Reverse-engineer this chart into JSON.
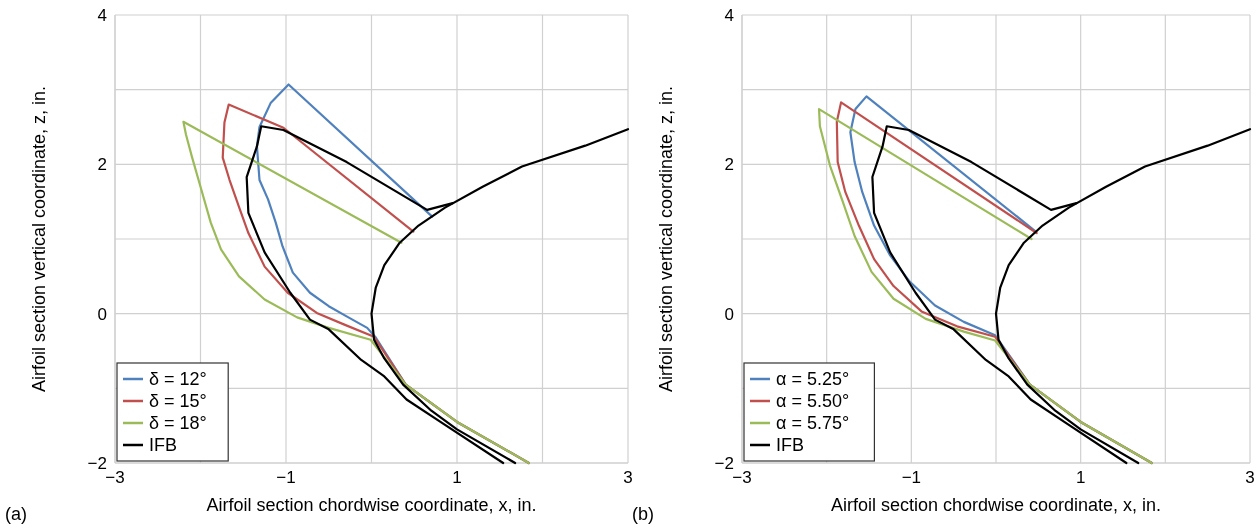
{
  "chart_data": [
    {
      "type": "line",
      "xlabel": "Airfoil section chordwise coordinate, x, in.",
      "ylabel": "Airfoil section vertical coordinate, z, in.",
      "annotations": [
        "(a)"
      ],
      "xlim": [
        -3,
        3
      ],
      "ylim": [
        -2,
        4
      ],
      "xticks": [
        -3,
        {
          "value": -2,
          "label": null
        },
        -1,
        {
          "value": 0,
          "label": null
        },
        1,
        {
          "value": 2,
          "label": null
        },
        3
      ],
      "yticks": [
        -2,
        {
          "value": -1,
          "label": null
        },
        0,
        {
          "value": 1,
          "label": null
        },
        2,
        {
          "value": 3,
          "label": null
        },
        4
      ],
      "grid": true,
      "legend": "bottom left",
      "series": [
        {
          "name": "δ = 12°",
          "color": "#4f81bd",
          "x": [
            1.84,
            1.0,
            0.4,
            0.05,
            -0.05,
            -0.27,
            -0.5,
            -0.72,
            -0.92,
            -1.04,
            -1.12,
            -1.21,
            -1.31,
            -1.34,
            -1.31,
            -1.18,
            -0.97,
            0.71
          ],
          "values": [
            -2.0,
            -1.45,
            -0.95,
            -0.32,
            -0.19,
            -0.05,
            0.1,
            0.28,
            0.55,
            0.9,
            1.22,
            1.53,
            1.79,
            2.24,
            2.5,
            2.82,
            3.07,
            1.3
          ]
        },
        {
          "name": "δ = 15°",
          "color": "#c0504d",
          "x": [
            1.84,
            1.0,
            0.4,
            0.03,
            -0.31,
            -0.64,
            -0.98,
            -1.25,
            -1.44,
            -1.55,
            -1.66,
            -1.74,
            -1.72,
            -1.67,
            -1.03,
            0.49
          ],
          "values": [
            -2.0,
            -1.45,
            -0.95,
            -0.31,
            -0.15,
            0.01,
            0.28,
            0.63,
            1.08,
            1.43,
            1.79,
            2.09,
            2.56,
            2.8,
            2.49,
            1.1
          ]
        },
        {
          "name": "δ = 18°",
          "color": "#9bbb59",
          "x": [
            1.84,
            1.0,
            0.4,
            -0.01,
            -0.5,
            -0.87,
            -1.25,
            -1.55,
            -1.76,
            -1.88,
            -2.0,
            -2.1,
            -2.17,
            -2.2,
            0.35
          ],
          "values": [
            -2.0,
            -1.45,
            -0.95,
            -0.35,
            -0.19,
            -0.05,
            0.19,
            0.5,
            0.86,
            1.22,
            1.7,
            2.1,
            2.4,
            2.57,
            0.95
          ]
        },
        {
          "color": "#000000",
          "x": [
            3,
            2.5,
            1.76,
            1.3,
            0.86,
            0.55,
            0.33,
            0.15,
            0.05,
            0,
            0.03,
            0.15,
            0.37,
            0.7,
            1.0,
            1.68
          ],
          "values": [
            2.47,
            2.25,
            1.97,
            1.7,
            1.42,
            1.18,
            0.95,
            0.65,
            0.35,
            0,
            -0.35,
            -0.6,
            -0.95,
            -1.3,
            -1.55,
            -2.0
          ]
        },
        {
          "name": "IFB",
          "color": "#000000",
          "x": [
            0.95,
            0.65,
            -0.29,
            -1.03,
            -1.29,
            -1.34,
            -1.46,
            -1.44,
            -1.25,
            -0.95,
            -0.72,
            -0.5,
            -0.12,
            0.15,
            0.41,
            0.82,
            1.54
          ],
          "values": [
            1.48,
            1.39,
            2.03,
            2.46,
            2.51,
            2.24,
            1.83,
            1.35,
            0.82,
            0.28,
            -0.08,
            -0.21,
            -0.62,
            -0.84,
            -1.15,
            -1.46,
            -2.0
          ]
        }
      ]
    },
    {
      "type": "line",
      "xlabel": "Airfoil section chordwise coordinate, x, in.",
      "ylabel": "Airfoil section vertical coordinate, z, in.",
      "annotations": [
        "(b)"
      ],
      "xlim": [
        -3,
        3
      ],
      "ylim": [
        -2,
        4
      ],
      "xticks": [
        -3,
        {
          "value": -2,
          "label": null
        },
        -1,
        {
          "value": 0,
          "label": null
        },
        1,
        {
          "value": 2,
          "label": null
        },
        3
      ],
      "yticks": [
        -2,
        {
          "value": -1,
          "label": null
        },
        0,
        {
          "value": 1,
          "label": null
        },
        2,
        {
          "value": 3,
          "label": null
        },
        4
      ],
      "grid": true,
      "legend": "bottom left",
      "series": [
        {
          "name": "α = 5.25°",
          "color": "#4f81bd",
          "x": [
            1.84,
            1.0,
            0.4,
            -0.01,
            -0.38,
            -0.72,
            -1.02,
            -1.25,
            -1.44,
            -1.58,
            -1.67,
            -1.72,
            -1.66,
            -1.53,
            0.47
          ],
          "values": [
            -2.0,
            -1.45,
            -0.95,
            -0.29,
            -0.11,
            0.11,
            0.43,
            0.78,
            1.18,
            1.63,
            2.03,
            2.43,
            2.74,
            2.91,
            1.1
          ]
        },
        {
          "name": "α = 5.50°",
          "color": "#c0504d",
          "x": [
            1.84,
            1.0,
            0.4,
            -0.01,
            -0.46,
            -0.88,
            -1.21,
            -1.44,
            -1.62,
            -1.78,
            -1.87,
            -1.88,
            -1.83,
            0.48
          ],
          "values": [
            -2.0,
            -1.45,
            -0.95,
            -0.31,
            -0.17,
            0.03,
            0.37,
            0.73,
            1.18,
            1.63,
            2.03,
            2.57,
            2.83,
            1.08
          ]
        },
        {
          "name": "α = 5.75°",
          "color": "#9bbb59",
          "x": [
            1.84,
            1.0,
            0.4,
            -0.01,
            -0.38,
            -0.83,
            -1.21,
            -1.47,
            -1.67,
            -1.81,
            -1.96,
            -2.08,
            -2.09,
            0.42
          ],
          "values": [
            -2.0,
            -1.45,
            -0.95,
            -0.36,
            -0.24,
            -0.07,
            0.2,
            0.56,
            1.04,
            1.5,
            1.98,
            2.51,
            2.74,
            1.0
          ]
        },
        {
          "color": "#000000",
          "x": [
            3,
            2.5,
            1.76,
            1.3,
            0.86,
            0.55,
            0.33,
            0.15,
            0.05,
            0,
            0.03,
            0.15,
            0.37,
            0.7,
            1.0,
            1.68
          ],
          "values": [
            2.47,
            2.25,
            1.97,
            1.7,
            1.42,
            1.18,
            0.95,
            0.65,
            0.35,
            0,
            -0.35,
            -0.6,
            -0.95,
            -1.3,
            -1.55,
            -2.0
          ]
        },
        {
          "name": "IFB",
          "color": "#000000",
          "x": [
            0.95,
            0.65,
            -0.29,
            -1.03,
            -1.29,
            -1.34,
            -1.46,
            -1.44,
            -1.25,
            -0.95,
            -0.72,
            -0.5,
            -0.12,
            0.15,
            0.41,
            0.82,
            1.54
          ],
          "values": [
            1.48,
            1.39,
            2.03,
            2.46,
            2.51,
            2.24,
            1.83,
            1.35,
            0.82,
            0.28,
            -0.08,
            -0.21,
            -0.62,
            -0.84,
            -1.15,
            -1.46,
            -2.0
          ]
        }
      ]
    }
  ]
}
